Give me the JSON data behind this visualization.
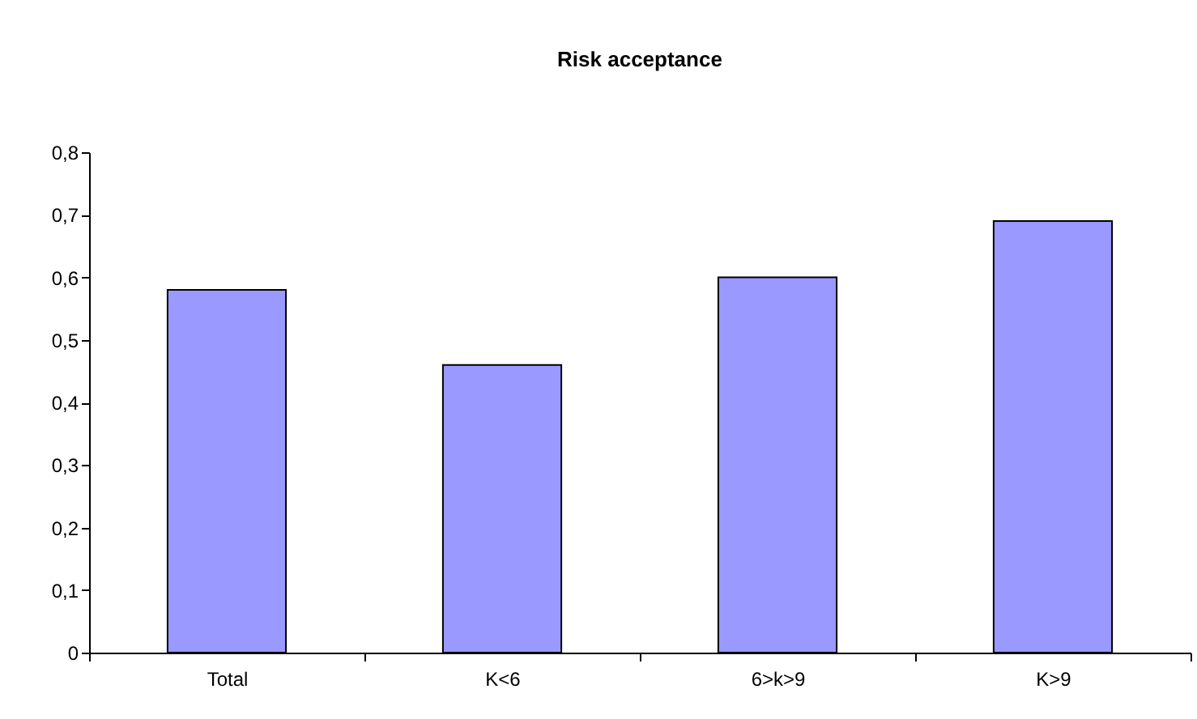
{
  "chart_data": {
    "type": "bar",
    "title": "Risk acceptance",
    "categories": [
      "Total",
      "K<6",
      "6>k>9",
      "K>9"
    ],
    "values": [
      0.58,
      0.46,
      0.6,
      0.69
    ],
    "color": "#9999ff",
    "ylim": [
      0,
      0.8
    ],
    "yticks": [
      0,
      {
        "value": 0.1,
        "label": "0,1"
      },
      {
        "value": 0.2,
        "label": "0,2"
      },
      {
        "value": 0.3,
        "label": "0,3"
      },
      {
        "value": 0.4,
        "label": "0,4"
      },
      {
        "value": 0.5,
        "label": "0,5"
      },
      {
        "value": 0.6,
        "label": "0,6"
      },
      {
        "value": 0.7,
        "label": "0,7"
      },
      {
        "value": 0.8,
        "label": "0,8"
      }
    ],
    "grid": false
  }
}
